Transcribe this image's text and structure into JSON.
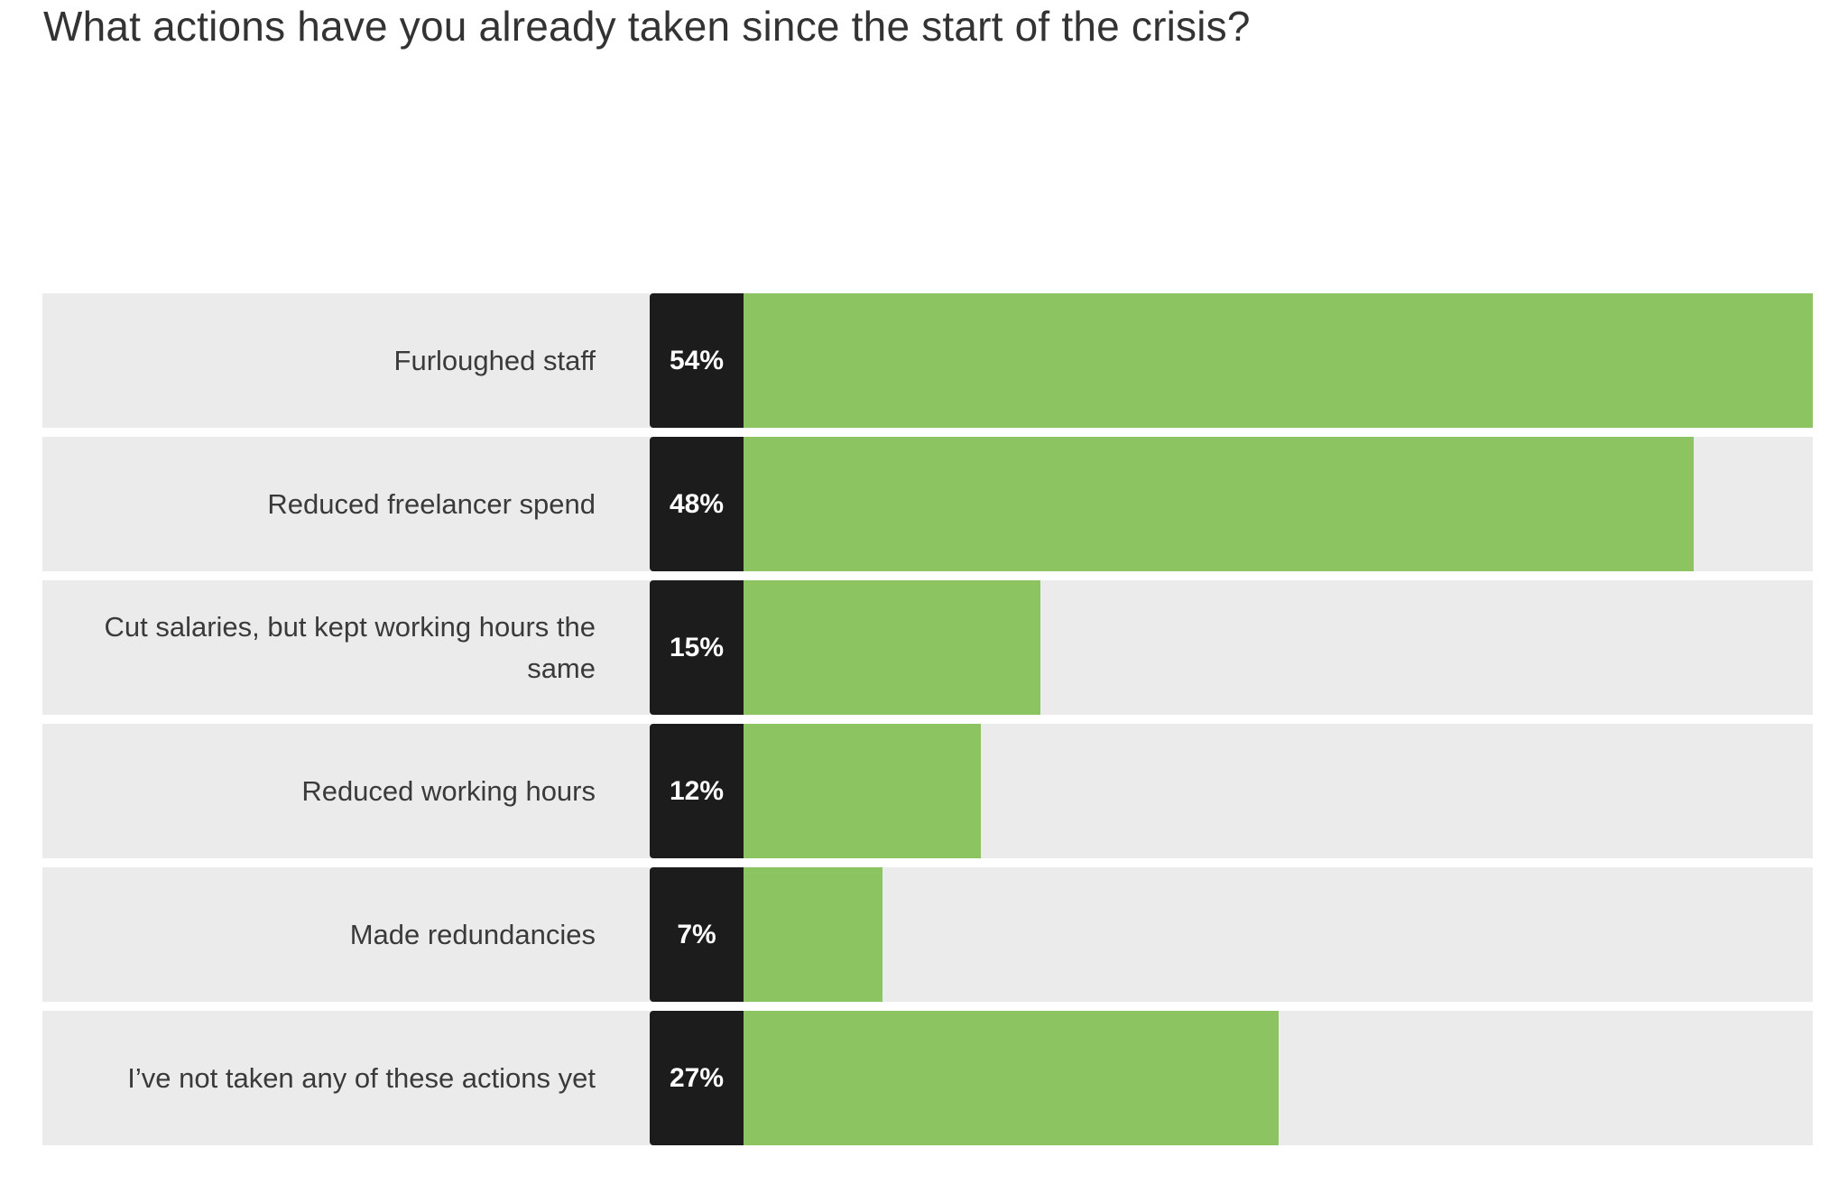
{
  "chart_data": {
    "type": "bar",
    "orientation": "horizontal",
    "title": "What actions have you already taken since the start of the crisis?",
    "xlim": [
      0,
      54
    ],
    "categories": [
      "Furloughed staff",
      "Reduced freelancer spend",
      "Cut salaries, but kept working hours the same",
      "Reduced working hours",
      "Made redundancies",
      "I’ve not taken any of these actions yet"
    ],
    "values": [
      54,
      48,
      15,
      12,
      7,
      27
    ],
    "value_labels": [
      "54%",
      "48%",
      "15%",
      "12%",
      "7%",
      "27%"
    ],
    "colors": {
      "bar": "#8dc462",
      "value_box": "#1c1c1c",
      "row_background": "#ebebeb"
    }
  }
}
